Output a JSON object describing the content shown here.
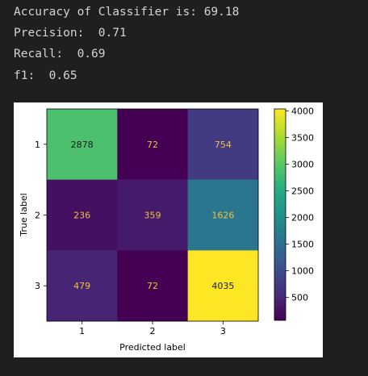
{
  "console": {
    "accuracy": "Accuracy of Classifier is: 69.18",
    "precision": "Precision:  0.71",
    "recall": "Recall:  0.69",
    "f1": "f1:  0.65"
  },
  "chart_data": {
    "type": "heatmap",
    "title": "",
    "xlabel": "Predicted label",
    "ylabel": "True label",
    "x_categories": [
      "1",
      "2",
      "3"
    ],
    "y_categories": [
      "1",
      "2",
      "3"
    ],
    "matrix": [
      [
        2878,
        72,
        754
      ],
      [
        236,
        359,
        1626
      ],
      [
        479,
        72,
        4035
      ]
    ],
    "colormap": "viridis",
    "colorbar": {
      "ticks": [
        500,
        1000,
        1500,
        2000,
        2500,
        3000,
        3500,
        4000
      ],
      "min": 72,
      "max": 4035
    }
  }
}
